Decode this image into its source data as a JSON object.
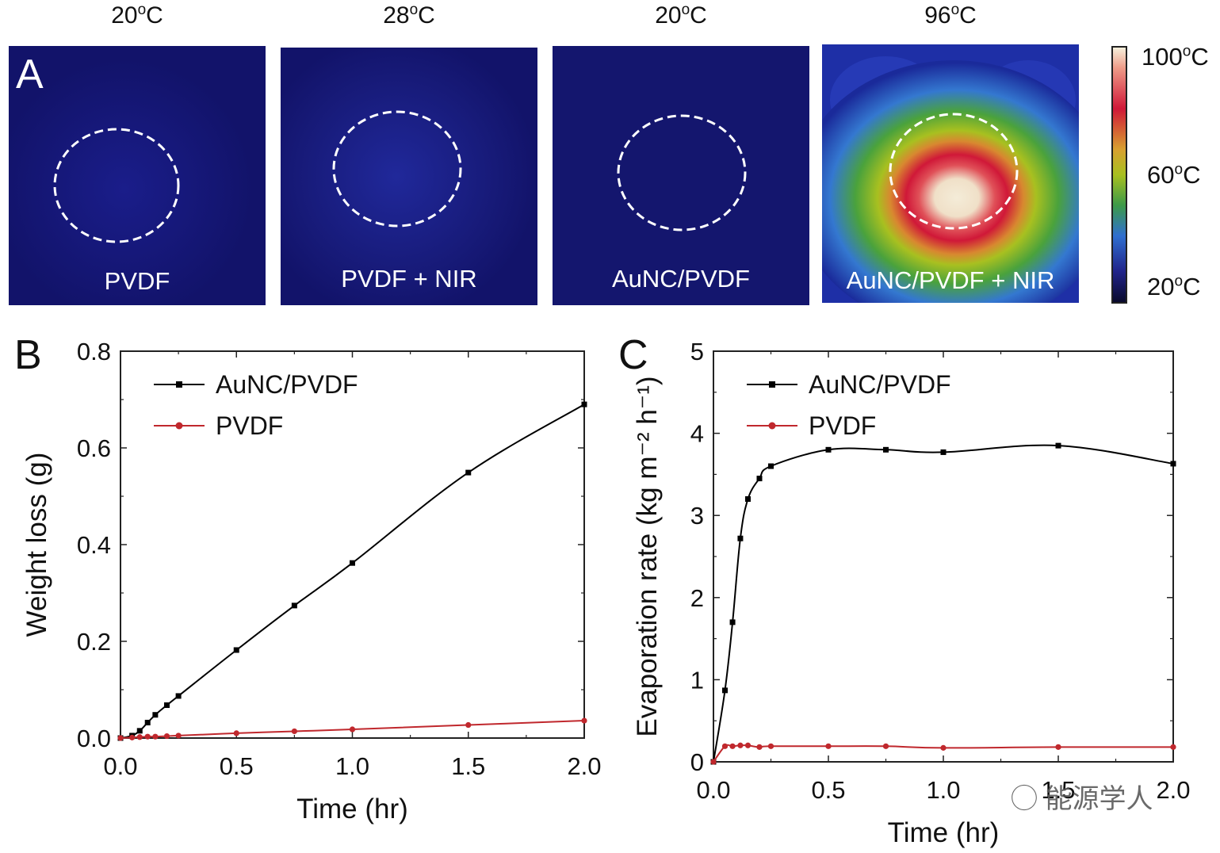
{
  "panel_a": {
    "letter": "A",
    "panels": [
      {
        "temp": "20",
        "label": "PVDF"
      },
      {
        "temp": "28",
        "label": "PVDF + NIR"
      },
      {
        "temp": "20",
        "label": "AuNC/PVDF"
      },
      {
        "temp": "96",
        "label": "AuNC/PVDF + NIR"
      }
    ],
    "temp_unit_sup": "o",
    "temp_unit": "C",
    "colorbar": {
      "max": "100",
      "mid": "60",
      "min": "20",
      "colors": [
        "#f6f0dc",
        "#d01838",
        "#a8c020",
        "#2f6fd0",
        "#090a2c"
      ]
    }
  },
  "panel_b": {
    "letter": "B"
  },
  "panel_c": {
    "letter": "C"
  },
  "chart_data": [
    {
      "type": "line",
      "panel": "B",
      "xlabel": "Time (hr)",
      "ylabel": "Weight loss (g)",
      "xlim": [
        0,
        2
      ],
      "ylim": [
        0,
        0.8
      ],
      "xticks": [
        "0.0",
        "0.5",
        "1.0",
        "1.5",
        "2.0"
      ],
      "yticks": [
        "0.0",
        "0.2",
        "0.4",
        "0.6",
        "0.8"
      ],
      "legend_position": "top-left",
      "series": [
        {
          "name": "AuNC/PVDF",
          "color": "#000000",
          "marker": "square",
          "x": [
            0,
            0.05,
            0.083,
            0.117,
            0.15,
            0.2,
            0.25,
            0.5,
            0.75,
            1.0,
            1.5,
            2.0
          ],
          "y": [
            0,
            0.005,
            0.015,
            0.032,
            0.048,
            0.068,
            0.087,
            0.182,
            0.274,
            0.362,
            0.549,
            0.69
          ]
        },
        {
          "name": "PVDF",
          "color": "#c0282d",
          "marker": "circle",
          "x": [
            0,
            0.05,
            0.083,
            0.117,
            0.15,
            0.2,
            0.25,
            0.5,
            0.75,
            1.0,
            1.5,
            2.0
          ],
          "y": [
            0,
            0.001,
            0.002,
            0.003,
            0.003,
            0.004,
            0.005,
            0.01,
            0.014,
            0.018,
            0.027,
            0.036
          ]
        }
      ]
    },
    {
      "type": "line",
      "panel": "C",
      "xlabel": "Time (hr)",
      "ylabel": "Evaporation rate (kg m⁻² h⁻¹)",
      "xlim": [
        0,
        2
      ],
      "ylim": [
        0,
        5
      ],
      "xticks": [
        "0.0",
        "0.5",
        "1.0",
        "1.5",
        "2.0"
      ],
      "yticks": [
        "0",
        "1",
        "2",
        "3",
        "4",
        "5"
      ],
      "legend_position": "top-left",
      "series": [
        {
          "name": "AuNC/PVDF",
          "color": "#000000",
          "marker": "square",
          "x": [
            0,
            0.05,
            0.083,
            0.117,
            0.15,
            0.2,
            0.25,
            0.5,
            0.75,
            1.0,
            1.5,
            2.0
          ],
          "y": [
            0,
            0.87,
            1.7,
            2.72,
            3.2,
            3.45,
            3.6,
            3.8,
            3.8,
            3.77,
            3.85,
            3.63
          ]
        },
        {
          "name": "PVDF",
          "color": "#c0282d",
          "marker": "circle",
          "x": [
            0,
            0.05,
            0.083,
            0.117,
            0.15,
            0.2,
            0.25,
            0.5,
            0.75,
            1.0,
            1.5,
            2.0
          ],
          "y": [
            0,
            0.19,
            0.19,
            0.2,
            0.2,
            0.18,
            0.19,
            0.19,
            0.19,
            0.17,
            0.18,
            0.18
          ]
        }
      ]
    }
  ],
  "watermark": "能源学人"
}
